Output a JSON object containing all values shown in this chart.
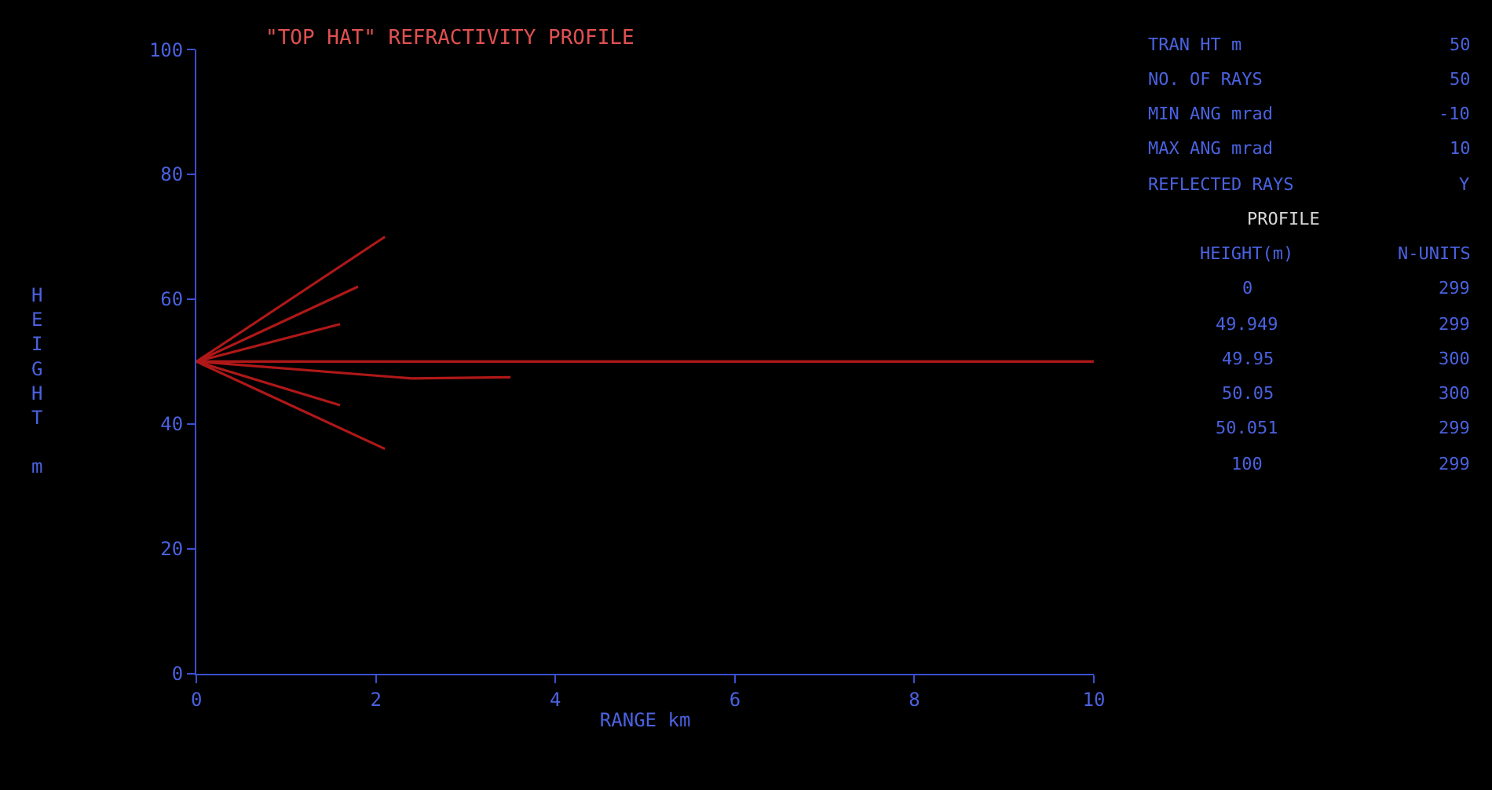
{
  "chart_data": {
    "type": "line",
    "title": "\"TOP HAT\" REFRACTIVITY PROFILE",
    "xlabel": "RANGE km",
    "ylabel": "HEIGHT m",
    "xlim": [
      0,
      10
    ],
    "ylim": [
      0,
      100
    ],
    "xticks": [
      0,
      2,
      4,
      6,
      8,
      10
    ],
    "yticks": [
      0,
      20,
      40,
      60,
      80,
      100
    ],
    "marker": "none",
    "line_style": "solid",
    "series": [
      {
        "color": "#b01818",
        "x": [
          0,
          2.1
        ],
        "values": [
          50,
          70
        ]
      },
      {
        "color": "#b01818",
        "x": [
          0,
          1.8
        ],
        "values": [
          50,
          62
        ]
      },
      {
        "color": "#b01818",
        "x": [
          0,
          1.6
        ],
        "values": [
          50,
          56
        ]
      },
      {
        "color": "#b01818",
        "x": [
          0,
          2.4,
          3.5
        ],
        "values": [
          50,
          47.3,
          47.5
        ]
      },
      {
        "color": "#b01818",
        "x": [
          0,
          1.6
        ],
        "values": [
          50,
          43
        ]
      },
      {
        "color": "#b01818",
        "x": [
          0,
          2.1
        ],
        "values": [
          50,
          36
        ]
      },
      {
        "color": "#b01818",
        "x": [
          0,
          10
        ],
        "values": [
          50,
          50
        ]
      }
    ],
    "annotations": [
      "TRAN HT m",
      "50",
      "NO. OF RAYS",
      "50",
      "MIN ANG mrad",
      "-10",
      "MAX ANG mrad",
      "10",
      "REFLECTED RAYS",
      "Y",
      "PROFILE",
      "HEIGHT(m)",
      "N-UNITS",
      "0",
      "299",
      "49.949",
      "299",
      "49.95",
      "300",
      "50.05",
      "300",
      "50.051",
      "299",
      "100",
      "299"
    ]
  }
}
